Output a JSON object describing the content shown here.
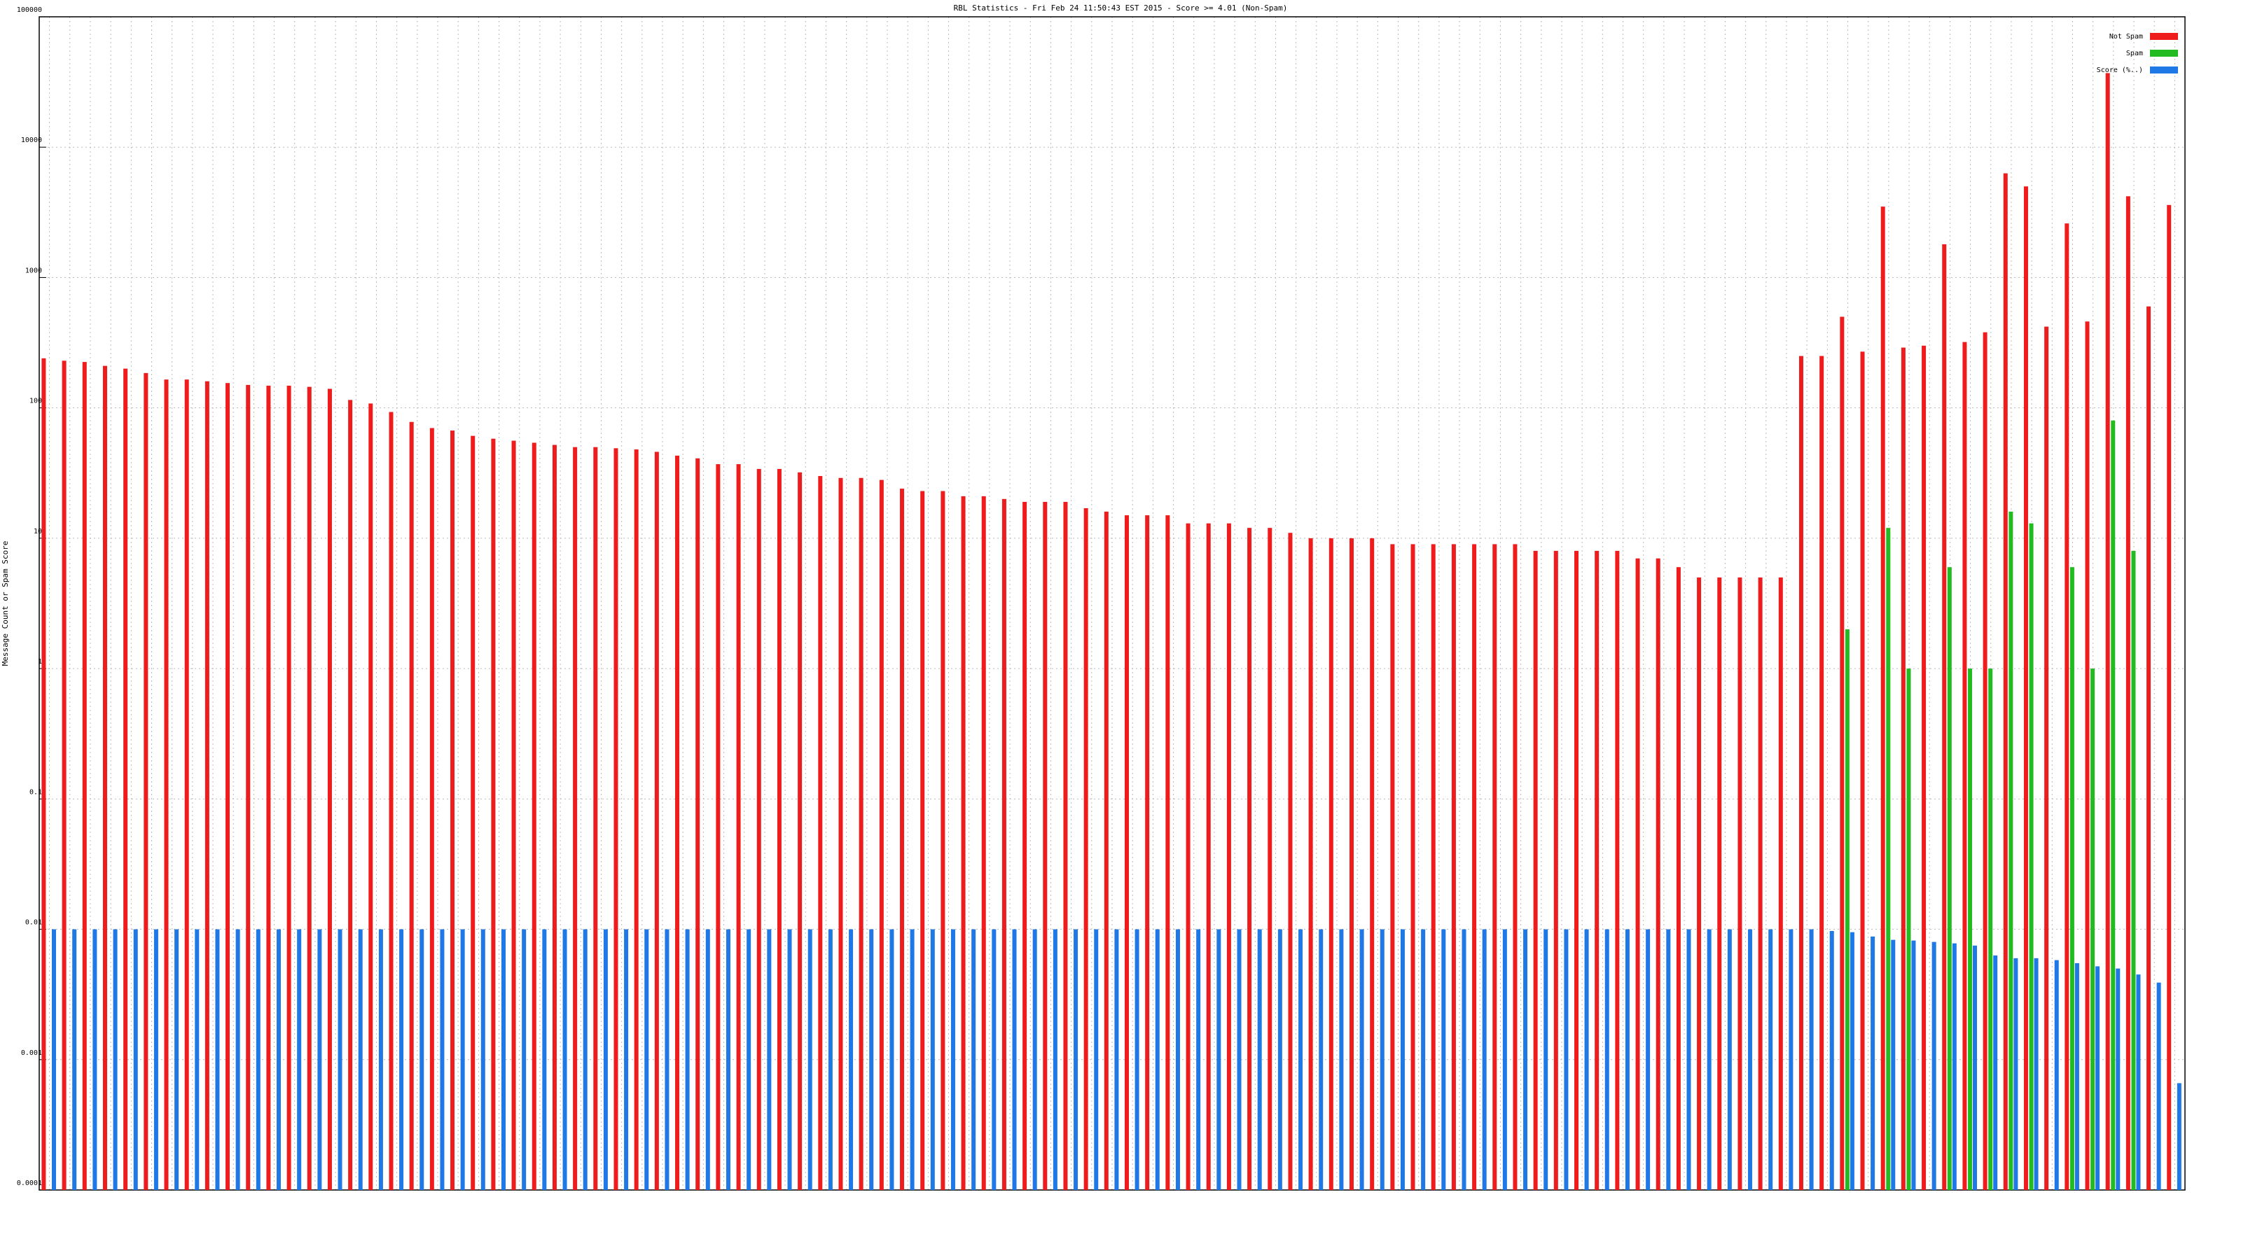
{
  "chart_data": {
    "type": "bar",
    "title": "RBL Statistics - Fri Feb 24 11:50:43 EST 2015 - Score >= 4.01 (Non-Spam)",
    "y_label": "Message Count or Spam Score",
    "log_scale": true,
    "grid": true,
    "legend": "top-right",
    "categories": [
      null,
      null,
      null,
      null,
      null,
      null,
      null,
      null,
      null,
      null,
      null,
      null,
      null,
      null,
      null,
      null,
      null,
      null,
      null,
      null,
      null,
      null,
      null,
      null,
      null,
      null,
      null,
      null,
      null,
      null,
      null,
      null,
      null,
      null,
      null,
      null,
      null,
      null,
      null,
      null,
      null,
      null,
      null,
      null,
      null,
      null,
      null,
      null,
      null,
      null,
      null,
      null,
      null,
      null,
      null,
      null,
      null,
      null,
      null,
      null,
      null,
      null,
      null,
      null,
      null,
      null,
      null,
      null,
      null,
      null,
      null,
      null,
      null,
      null,
      null,
      null,
      null,
      null,
      null,
      null,
      null,
      null,
      null,
      null,
      null,
      null,
      null,
      null,
      null,
      null,
      null,
      null,
      null,
      null,
      null,
      null,
      null,
      null,
      null,
      null,
      null,
      null,
      null,
      null,
      null
    ],
    "series": [
      {
        "name": "Not Spam",
        "color": "#ee1c1c",
        "values": [
          240,
          230,
          225,
          210,
          200,
          185,
          165,
          165,
          160,
          155,
          150,
          148,
          148,
          145,
          140,
          115,
          108,
          93,
          78,
          70,
          67,
          61,
          58,
          56,
          54,
          52,
          50,
          50,
          49,
          48,
          46,
          43,
          41,
          37,
          37,
          34,
          34,
          32,
          30,
          29,
          29,
          28,
          24,
          23,
          23,
          21,
          21,
          20,
          19,
          19,
          19,
          17,
          16,
          15,
          15,
          15,
          13,
          13,
          13,
          12,
          12,
          11,
          10,
          10,
          10,
          10,
          9,
          9,
          9,
          9,
          9,
          9,
          9,
          8,
          8,
          8,
          8,
          8,
          7,
          7,
          6,
          5,
          5,
          5,
          5,
          5,
          250,
          250,
          500,
          270,
          3500,
          290,
          300,
          1800,
          320,
          380,
          6300,
          5000,
          420,
          2600,
          460,
          37000,
          4200,
          600,
          3600
        ]
      },
      {
        "name": "Spam",
        "color": "#22bb22",
        "values": [
          null,
          null,
          null,
          null,
          null,
          null,
          null,
          null,
          null,
          null,
          null,
          null,
          null,
          null,
          null,
          null,
          null,
          null,
          null,
          null,
          null,
          null,
          null,
          null,
          null,
          null,
          null,
          null,
          null,
          null,
          null,
          null,
          null,
          null,
          null,
          null,
          null,
          null,
          null,
          null,
          null,
          null,
          null,
          null,
          null,
          null,
          null,
          null,
          null,
          null,
          null,
          null,
          null,
          null,
          null,
          null,
          null,
          null,
          null,
          null,
          null,
          null,
          null,
          null,
          null,
          null,
          null,
          null,
          null,
          null,
          null,
          null,
          null,
          null,
          null,
          null,
          null,
          null,
          null,
          null,
          null,
          null,
          null,
          null,
          null,
          null,
          null,
          null,
          2,
          null,
          12,
          1,
          null,
          6,
          1,
          1,
          16,
          13,
          null,
          6,
          1,
          80,
          8,
          null,
          null
        ]
      },
      {
        "name": "Score (%..)",
        "color": "#1e78e6",
        "values": [
          0.01,
          0.01,
          0.01,
          0.01,
          0.01,
          0.01,
          0.01,
          0.01,
          0.01,
          0.01,
          0.01,
          0.01,
          0.01,
          0.01,
          0.01,
          0.01,
          0.01,
          0.01,
          0.01,
          0.01,
          0.01,
          0.01,
          0.01,
          0.01,
          0.01,
          0.01,
          0.01,
          0.01,
          0.01,
          0.01,
          0.01,
          0.01,
          0.01,
          0.01,
          0.01,
          0.01,
          0.01,
          0.01,
          0.01,
          0.01,
          0.01,
          0.01,
          0.01,
          0.01,
          0.01,
          0.01,
          0.01,
          0.01,
          0.01,
          0.01,
          0.01,
          0.01,
          0.01,
          0.01,
          0.01,
          0.01,
          0.01,
          0.01,
          0.01,
          0.01,
          0.01,
          0.01,
          0.01,
          0.01,
          0.01,
          0.01,
          0.01,
          0.01,
          0.01,
          0.01,
          0.01,
          0.01,
          0.01,
          0.01,
          0.01,
          0.01,
          0.01,
          0.01,
          0.01,
          0.01,
          0.01,
          0.01,
          0.01,
          0.01,
          0.01,
          0.01,
          0.01,
          0.0097,
          0.0095,
          0.0088,
          0.0083,
          0.0082,
          0.008,
          0.0078,
          0.0075,
          0.0063,
          0.006,
          0.006,
          0.0058,
          0.0055,
          0.0052,
          0.005,
          0.0045,
          0.0039,
          0.00066
        ]
      }
    ],
    "ylim": [
      0.0001,
      100000
    ],
    "yticks": [
      0.0001,
      0.001,
      0.01,
      0.1,
      1,
      10,
      100,
      1000,
      10000,
      100000
    ]
  }
}
